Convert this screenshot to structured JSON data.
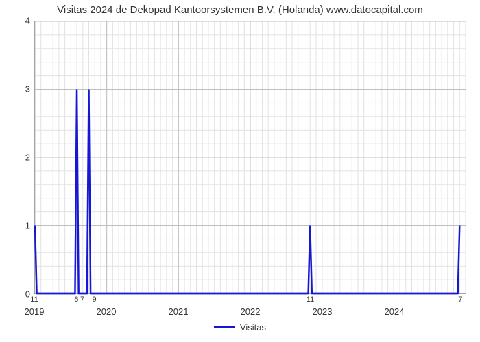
{
  "chart": {
    "type": "line",
    "title": "Visitas 2024 de Dekopad Kantoorsystemen B.V. (Holanda) www.datocapital.com",
    "title_fontsize": 15,
    "background_color": "#ffffff",
    "plot_border_color": "#888888",
    "grid_major_color": "#bfbfbf",
    "grid_minor_color": "#e2e2e2",
    "series_color": "#1616d6",
    "series_line_width": 2.5,
    "x_range": [
      0,
      72
    ],
    "y_range": [
      0,
      4
    ],
    "x_major_ticks": [
      {
        "v": 0,
        "label": "2019"
      },
      {
        "v": 12,
        "label": "2020"
      },
      {
        "v": 24,
        "label": "2021"
      },
      {
        "v": 36,
        "label": "2022"
      },
      {
        "v": 48,
        "label": "2023"
      },
      {
        "v": 60,
        "label": "2024"
      }
    ],
    "x_minor_step": 1,
    "x_minor_labels": [
      {
        "v": 0,
        "label": "11"
      },
      {
        "v": 7,
        "label": "6"
      },
      {
        "v": 8,
        "label": "7"
      },
      {
        "v": 10,
        "label": "9"
      },
      {
        "v": 46,
        "label": "11"
      },
      {
        "v": 71,
        "label": "7"
      }
    ],
    "y_major_ticks": [
      {
        "v": 0,
        "label": "0"
      },
      {
        "v": 1,
        "label": "1"
      },
      {
        "v": 2,
        "label": "2"
      },
      {
        "v": 3,
        "label": "3"
      },
      {
        "v": 4,
        "label": "4"
      }
    ],
    "y_minor_step": 0.2,
    "series": {
      "name": "Visitas",
      "points": [
        [
          0,
          1
        ],
        [
          0.3,
          0
        ],
        [
          6.7,
          0
        ],
        [
          7,
          3
        ],
        [
          7.3,
          0
        ],
        [
          8.7,
          0
        ],
        [
          9,
          3
        ],
        [
          9.3,
          0
        ],
        [
          45.7,
          0
        ],
        [
          46,
          1
        ],
        [
          46.3,
          0
        ],
        [
          70.7,
          0
        ],
        [
          71,
          1
        ]
      ]
    },
    "legend_label": "Visitas",
    "legend_fontsize": 13
  }
}
